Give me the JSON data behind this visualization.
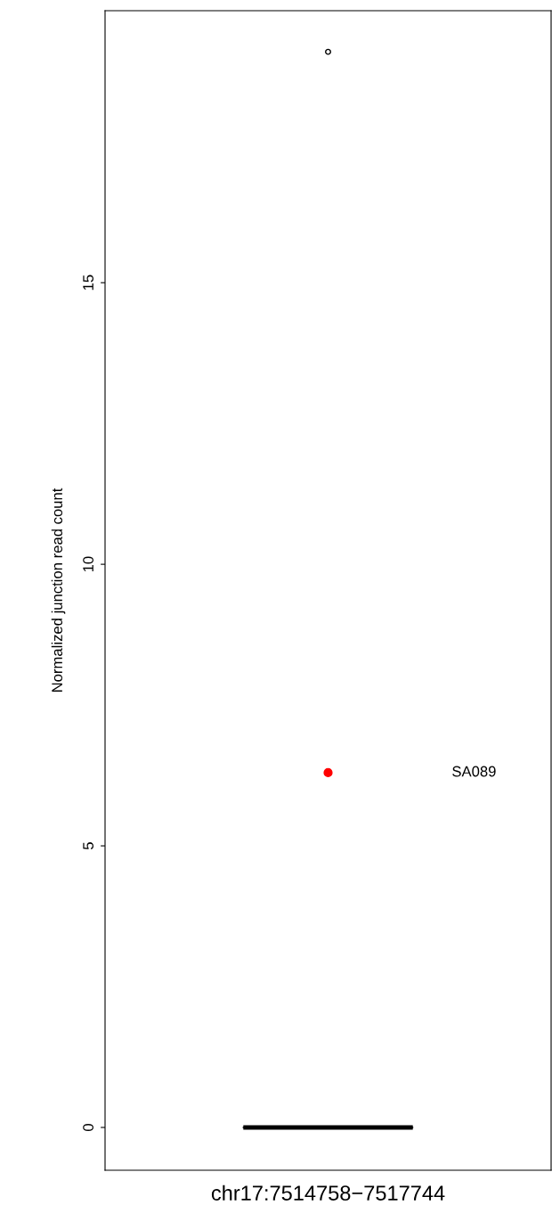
{
  "chart_data": {
    "type": "box",
    "ylabel": "Normalized junction read count",
    "categories": [
      "chr17:7514758−7517744"
    ],
    "boxes": [
      {
        "low": 0,
        "q1": 0,
        "median": 0,
        "q3": 0,
        "high": 0,
        "outliers": [
          19.1
        ]
      }
    ],
    "series": [
      {
        "type": "scatter",
        "x": [
          "chr17:7514758−7517744"
        ],
        "values": [
          6.3
        ],
        "color": "#ff0000",
        "marker": "circle"
      }
    ],
    "annotations": [
      "SA089"
    ],
    "ylim": [
      -0.76,
      19.83
    ],
    "yticks": [
      0,
      5,
      10,
      15
    ]
  }
}
